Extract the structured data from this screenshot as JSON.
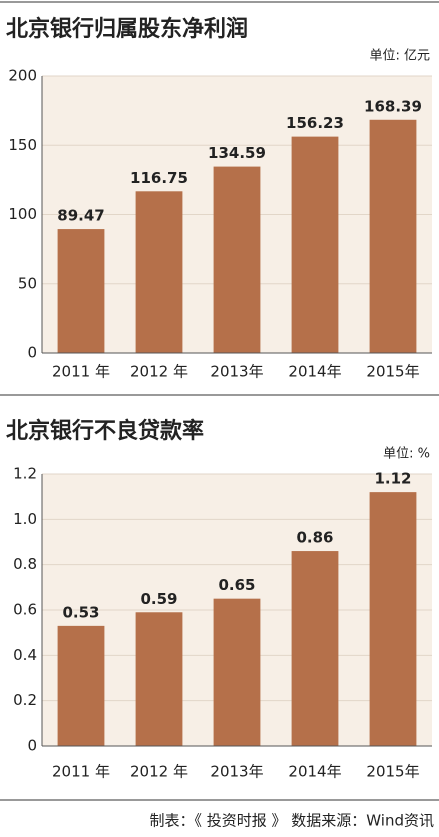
{
  "chart_data": [
    {
      "type": "bar",
      "title": "北京银行归属股东净利润",
      "unit": "单位: 亿元",
      "categories": [
        "2011 年",
        "2012 年",
        "2013年",
        "2014年",
        "2015年"
      ],
      "values": [
        89.47,
        116.75,
        134.59,
        156.23,
        168.39
      ],
      "color": "#b5704a",
      "ylim": [
        0,
        200
      ],
      "yticks": [
        0,
        50,
        100,
        150,
        200
      ],
      "grid": true
    },
    {
      "type": "bar",
      "title": "北京银行不良贷款率",
      "unit": "单位: %",
      "categories": [
        "2011 年",
        "2012 年",
        "2013年",
        "2014年",
        "2015年"
      ],
      "values": [
        0.53,
        0.59,
        0.65,
        0.86,
        1.12
      ],
      "color": "#b5704a",
      "ylim": [
        0,
        1.2
      ],
      "yticks": [
        0,
        0.2,
        0.4,
        0.6,
        0.8,
        {
          "value": 1,
          "label": "1.0"
        },
        1.2
      ],
      "grid": true
    }
  ],
  "footer": "制表：《 投资时报 》  数据来源：Wind资讯"
}
